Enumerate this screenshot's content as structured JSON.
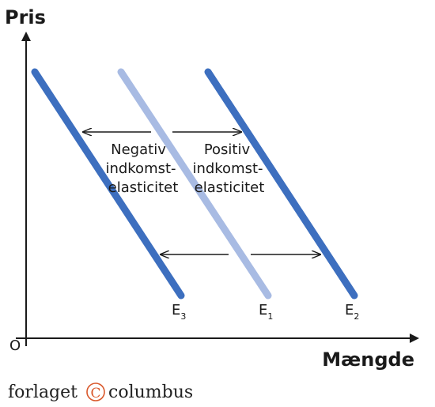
{
  "axes": {
    "y_label": "Pris",
    "x_label": "Mængde",
    "origin": "O"
  },
  "curves": [
    {
      "label": "E",
      "subscript": "3"
    },
    {
      "label": "E",
      "subscript": "1"
    },
    {
      "label": "E",
      "subscript": "2"
    }
  ],
  "annotations": {
    "negative": [
      "Negativ",
      "indkomst-",
      "elasticitet"
    ],
    "positive": [
      "Positiv",
      "indkomst-",
      "elasticitet"
    ]
  },
  "footer": {
    "left": "forlaget",
    "mark": "C",
    "right": "columbus"
  }
}
